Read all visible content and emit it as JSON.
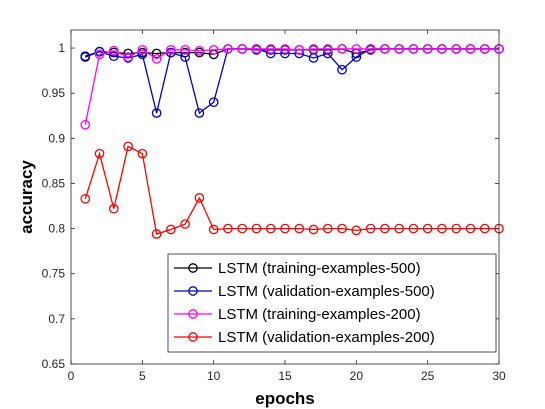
{
  "chart_data": {
    "type": "line",
    "title": "",
    "xlabel": "epochs",
    "ylabel": "accuracy",
    "xlim": [
      0,
      30
    ],
    "ylim": [
      0.65,
      1.02
    ],
    "x_ticks": [
      0,
      5,
      10,
      15,
      20,
      25,
      30
    ],
    "y_ticks": [
      0.65,
      0.7,
      0.75,
      0.8,
      0.85,
      0.9,
      0.95,
      1
    ],
    "x_tick_labels": [
      "0",
      "5",
      "10",
      "15",
      "20",
      "25",
      "30"
    ],
    "y_tick_labels": [
      "0.65",
      "0.7",
      "0.75",
      "0.8",
      "0.85",
      "0.9",
      "0.95",
      "1"
    ],
    "grid": false,
    "legend_position": "bottom-right",
    "x": [
      1,
      2,
      3,
      4,
      5,
      6,
      7,
      8,
      9,
      10,
      11,
      12,
      13,
      14,
      15,
      16,
      17,
      18,
      19,
      20,
      21,
      22,
      23,
      24,
      25,
      26,
      27,
      28,
      29,
      30
    ],
    "series": [
      {
        "name": "LSTM (training-examples-500)",
        "color": "#000000",
        "marker": "circle",
        "values": [
          0.991,
          0.996,
          0.995,
          0.994,
          0.995,
          0.994,
          0.995,
          0.995,
          0.995,
          0.993,
          0.999,
          0.999,
          0.998,
          0.998,
          0.998,
          0.998,
          0.998,
          0.998,
          0.999,
          0.994,
          0.998,
          0.999,
          0.999,
          0.999,
          0.999,
          0.999,
          0.999,
          0.999,
          0.999,
          0.999
        ]
      },
      {
        "name": "LSTM (validation-examples-500)",
        "color": "#0000cc",
        "marker": "circle",
        "values": [
          0.99,
          0.996,
          0.991,
          0.989,
          0.993,
          0.928,
          0.995,
          0.99,
          0.928,
          0.94,
          0.999,
          0.999,
          0.999,
          0.994,
          0.994,
          0.994,
          0.989,
          0.994,
          0.976,
          0.99,
          0.999,
          0.999,
          0.999,
          0.999,
          0.999,
          0.999,
          0.999,
          0.999,
          0.999,
          0.999
        ]
      },
      {
        "name": "LSTM (training-examples-200)",
        "color": "#ff00ff",
        "marker": "circle",
        "values": [
          0.915,
          0.993,
          0.997,
          0.99,
          0.998,
          0.988,
          0.998,
          0.998,
          0.997,
          0.998,
          0.999,
          0.999,
          0.999,
          0.999,
          0.999,
          0.998,
          0.999,
          0.999,
          0.999,
          0.999,
          0.999,
          0.999,
          0.999,
          0.999,
          0.999,
          0.999,
          0.999,
          0.999,
          0.999,
          0.999
        ]
      },
      {
        "name": "LSTM (validation-examples-200)",
        "color": "#ff0000",
        "marker": "circle",
        "values": [
          0.833,
          0.883,
          0.822,
          0.891,
          0.883,
          0.794,
          0.799,
          0.805,
          0.834,
          0.799,
          0.8,
          0.8,
          0.8,
          0.8,
          0.8,
          0.8,
          0.799,
          0.8,
          0.8,
          0.798,
          0.8,
          0.8,
          0.8,
          0.8,
          0.8,
          0.8,
          0.8,
          0.8,
          0.8,
          0.8
        ]
      }
    ]
  }
}
